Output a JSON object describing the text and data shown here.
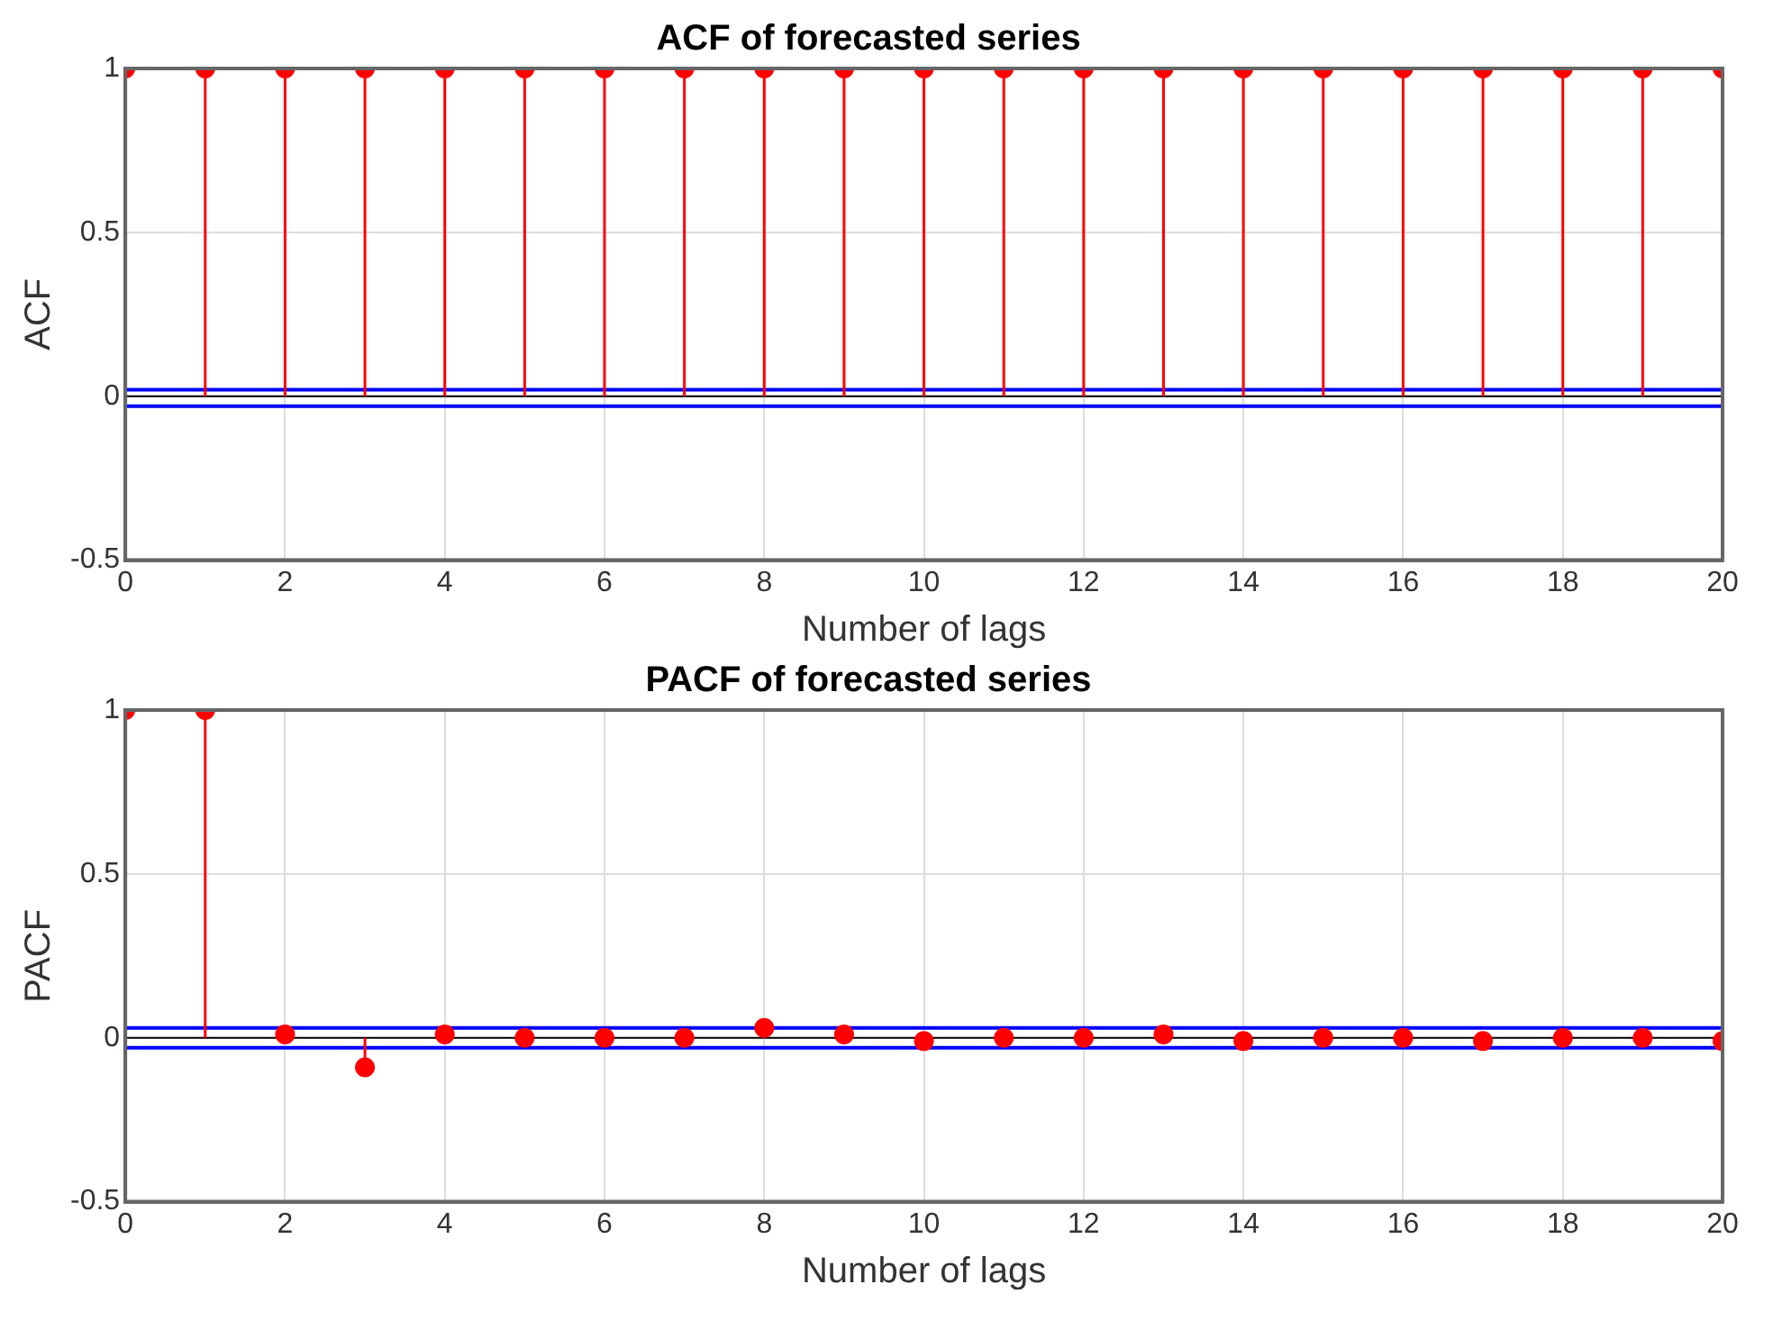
{
  "chart_data": [
    {
      "type": "lollipop",
      "title": "ACF of forecasted series",
      "xlabel": "Number of lags",
      "ylabel": "ACF",
      "x": [
        0,
        1,
        2,
        3,
        4,
        5,
        6,
        7,
        8,
        9,
        10,
        11,
        12,
        13,
        14,
        15,
        16,
        17,
        18,
        19,
        20
      ],
      "series": [
        {
          "color": "#ff0000",
          "values": [
            1,
            1,
            1,
            1,
            1,
            1,
            1,
            1,
            1,
            1,
            1,
            1,
            1,
            1,
            1,
            1,
            1,
            1,
            1,
            1,
            1
          ]
        }
      ],
      "xlim": [
        0,
        20
      ],
      "xticks": [
        0,
        2,
        4,
        6,
        8,
        10,
        12,
        14,
        16,
        18,
        20
      ],
      "ylim": [
        -0.5,
        1
      ],
      "yticks": [
        -0.5,
        0,
        0.5,
        1
      ],
      "grid": true,
      "marker": "circle",
      "ref_lines": [
        {
          "axis": "y",
          "value": 0.02,
          "color": "#0000ff"
        },
        {
          "axis": "y",
          "value": -0.03,
          "color": "#0000ff"
        }
      ]
    },
    {
      "type": "lollipop",
      "title": "PACF of forecasted series",
      "xlabel": "Number of lags",
      "ylabel": "PACF",
      "x": [
        0,
        1,
        2,
        3,
        4,
        5,
        6,
        7,
        8,
        9,
        10,
        11,
        12,
        13,
        14,
        15,
        16,
        17,
        18,
        19,
        20
      ],
      "series": [
        {
          "color": "#ff0000",
          "values": [
            1,
            1,
            0.01,
            -0.09,
            0.01,
            0,
            0,
            0,
            0.03,
            0.01,
            -0.01,
            0,
            0,
            0.01,
            -0.01,
            0,
            0,
            -0.01,
            0,
            0,
            -0.01
          ]
        }
      ],
      "xlim": [
        0,
        20
      ],
      "xticks": [
        0,
        2,
        4,
        6,
        8,
        10,
        12,
        14,
        16,
        18,
        20
      ],
      "ylim": [
        -0.5,
        1
      ],
      "yticks": [
        -0.5,
        0,
        0.5,
        1
      ],
      "grid": true,
      "marker": "circle",
      "ref_lines": [
        {
          "axis": "y",
          "value": 0.03,
          "color": "#0000ff"
        },
        {
          "axis": "y",
          "value": -0.03,
          "color": "#0000ff"
        }
      ]
    }
  ]
}
